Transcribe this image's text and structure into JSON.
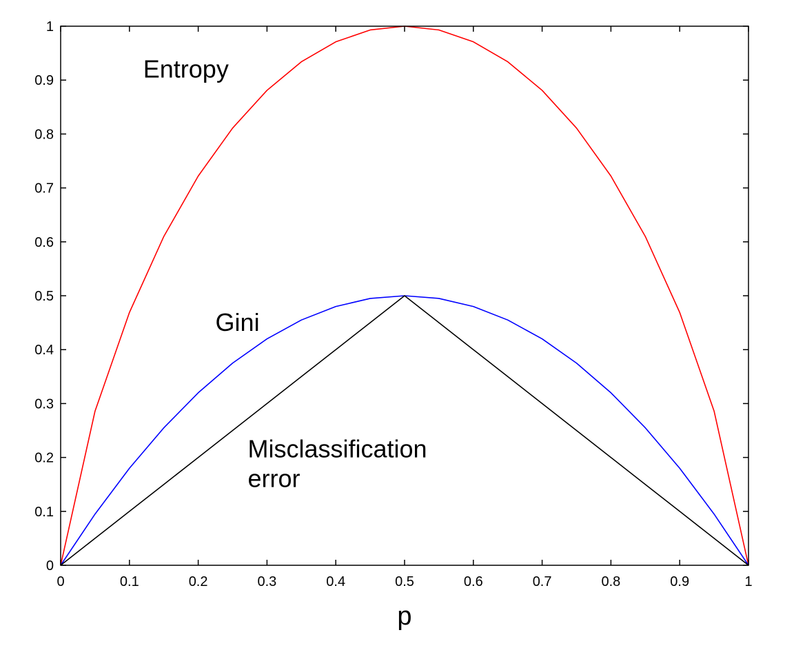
{
  "chart_data": {
    "type": "line",
    "title": "",
    "xlabel": "p",
    "ylabel": "",
    "xlim": [
      0,
      1
    ],
    "ylim": [
      0,
      1
    ],
    "grid": false,
    "legend": "none",
    "x_ticks": [
      "0",
      "0.1",
      "0.2",
      "0.3",
      "0.4",
      "0.5",
      "0.6",
      "0.7",
      "0.8",
      "0.9",
      "1"
    ],
    "y_ticks": [
      "0",
      "0.1",
      "0.2",
      "0.3",
      "0.4",
      "0.5",
      "0.6",
      "0.7",
      "0.8",
      "0.9",
      "1"
    ],
    "x": [
      0,
      0.05,
      0.1,
      0.15,
      0.2,
      0.25,
      0.3,
      0.35,
      0.4,
      0.45,
      0.5,
      0.55,
      0.6,
      0.65,
      0.7,
      0.75,
      0.8,
      0.85,
      0.9,
      0.95,
      1
    ],
    "series": [
      {
        "color": "#ff0000",
        "values": [
          0,
          0.286,
          0.469,
          0.61,
          0.722,
          0.811,
          0.881,
          0.934,
          0.971,
          0.993,
          1,
          0.993,
          0.971,
          0.934,
          0.881,
          0.811,
          0.722,
          0.61,
          0.469,
          0.286,
          0
        ]
      },
      {
        "color": "#0000ff",
        "values": [
          0,
          0.095,
          0.18,
          0.255,
          0.32,
          0.375,
          0.42,
          0.455,
          0.48,
          0.495,
          0.5,
          0.495,
          0.48,
          0.455,
          0.42,
          0.375,
          0.32,
          0.255,
          0.18,
          0.095,
          0
        ]
      },
      {
        "color": "#000000",
        "values": [
          0,
          0.05,
          0.1,
          0.15,
          0.2,
          0.25,
          0.3,
          0.35,
          0.4,
          0.45,
          0.5,
          0.45,
          0.4,
          0.35,
          0.3,
          0.25,
          0.2,
          0.15,
          0.1,
          0.05,
          0
        ]
      }
    ],
    "annotations": [
      {
        "id": "entropy",
        "text": "Entropy",
        "x": 0.12,
        "y": 0.905
      },
      {
        "id": "gini",
        "text": "Gini",
        "x": 0.225,
        "y": 0.435
      },
      {
        "id": "misclass-1",
        "text": "Misclassification",
        "x": 0.272,
        "y": 0.2
      },
      {
        "id": "misclass-2",
        "text": "error",
        "x": 0.272,
        "y": 0.145
      }
    ]
  }
}
